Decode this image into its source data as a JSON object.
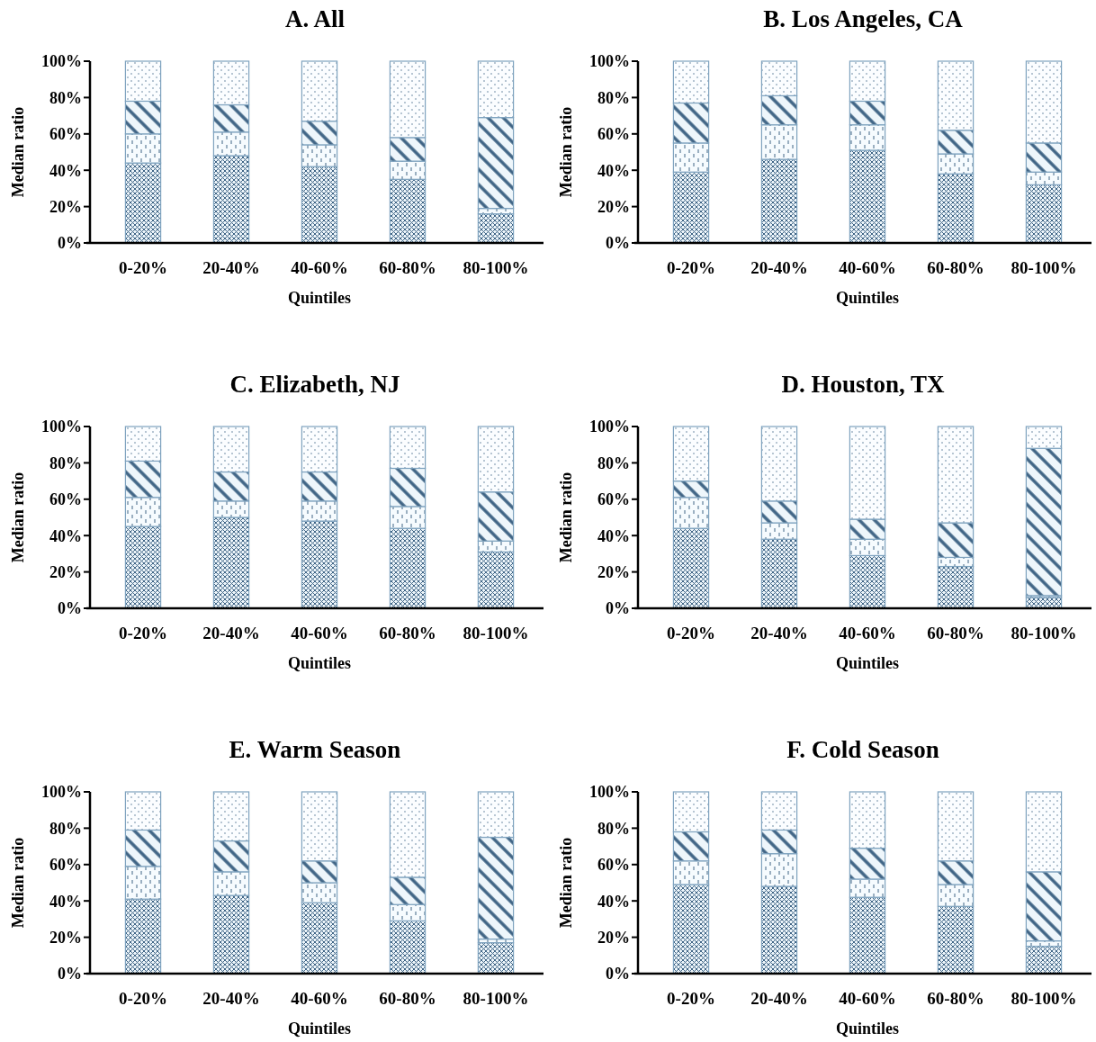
{
  "chart_data": [
    {
      "type": "bar",
      "stacked": true,
      "title": "A. All",
      "xlabel": "Quintiles",
      "ylabel": "Median ratio",
      "categories": [
        "0-20%",
        "20-40%",
        "40-60%",
        "60-80%",
        "80-100%"
      ],
      "ylim": [
        0,
        100
      ],
      "yticks": [
        {
          "value": 0,
          "label": "0%"
        },
        {
          "value": 20,
          "label": "20%"
        },
        {
          "value": 40,
          "label": "40%"
        },
        {
          "value": 60,
          "label": "60%"
        },
        {
          "value": 80,
          "label": "80%"
        },
        {
          "value": 100,
          "label": "100%"
        }
      ],
      "series": [
        {
          "color": "#7fa3bf",
          "values": [
            44,
            48,
            42,
            35,
            16
          ]
        },
        {
          "color": "#7fa3bf",
          "values": [
            16,
            13,
            12,
            10,
            3
          ]
        },
        {
          "color": "#7fa3bf",
          "values": [
            18,
            15,
            13,
            13,
            50
          ]
        },
        {
          "color": "#7fa3bf",
          "values": [
            22,
            24,
            33,
            42,
            31
          ]
        }
      ]
    },
    {
      "type": "bar",
      "stacked": true,
      "title": "B. Los Angeles, CA",
      "xlabel": "Quintiles",
      "ylabel": "Median ratio",
      "categories": [
        "0-20%",
        "20-40%",
        "40-60%",
        "60-80%",
        "80-100%"
      ],
      "ylim": [
        0,
        100
      ],
      "yticks": [
        {
          "value": 0,
          "label": "0%"
        },
        {
          "value": 20,
          "label": "20%"
        },
        {
          "value": 40,
          "label": "40%"
        },
        {
          "value": 60,
          "label": "60%"
        },
        {
          "value": 80,
          "label": "80%"
        },
        {
          "value": 100,
          "label": "100%"
        }
      ],
      "series": [
        {
          "color": "#7fa3bf",
          "values": [
            39,
            46,
            51,
            38,
            32
          ]
        },
        {
          "color": "#7fa3bf",
          "values": [
            16,
            19,
            14,
            11,
            7
          ]
        },
        {
          "color": "#7fa3bf",
          "values": [
            22,
            16,
            13,
            13,
            16
          ]
        },
        {
          "color": "#7fa3bf",
          "values": [
            23,
            19,
            22,
            38,
            45
          ]
        }
      ]
    },
    {
      "type": "bar",
      "stacked": true,
      "title": "C. Elizabeth, NJ",
      "xlabel": "Quintiles",
      "ylabel": "Median ratio",
      "categories": [
        "0-20%",
        "20-40%",
        "40-60%",
        "60-80%",
        "80-100%"
      ],
      "ylim": [
        0,
        100
      ],
      "yticks": [
        {
          "value": 0,
          "label": "0%"
        },
        {
          "value": 20,
          "label": "20%"
        },
        {
          "value": 40,
          "label": "40%"
        },
        {
          "value": 60,
          "label": "60%"
        },
        {
          "value": 80,
          "label": "80%"
        },
        {
          "value": 100,
          "label": "100%"
        }
      ],
      "series": [
        {
          "color": "#7fa3bf",
          "values": [
            45,
            50,
            48,
            44,
            31
          ]
        },
        {
          "color": "#7fa3bf",
          "values": [
            16,
            9,
            11,
            12,
            6
          ]
        },
        {
          "color": "#7fa3bf",
          "values": [
            20,
            16,
            16,
            21,
            27
          ]
        },
        {
          "color": "#7fa3bf",
          "values": [
            19,
            25,
            25,
            23,
            36
          ]
        }
      ]
    },
    {
      "type": "bar",
      "stacked": true,
      "title": "D. Houston, TX",
      "xlabel": "Quintiles",
      "ylabel": "Median ratio",
      "categories": [
        "0-20%",
        "20-40%",
        "40-60%",
        "60-80%",
        "80-100%"
      ],
      "ylim": [
        0,
        100
      ],
      "yticks": [
        {
          "value": 0,
          "label": "0%"
        },
        {
          "value": 20,
          "label": "20%"
        },
        {
          "value": 40,
          "label": "40%"
        },
        {
          "value": 60,
          "label": "60%"
        },
        {
          "value": 80,
          "label": "80%"
        },
        {
          "value": 100,
          "label": "100%"
        }
      ],
      "series": [
        {
          "color": "#7fa3bf",
          "values": [
            44,
            38,
            29,
            23,
            6
          ]
        },
        {
          "color": "#7fa3bf",
          "values": [
            17,
            9,
            9,
            5,
            1
          ]
        },
        {
          "color": "#7fa3bf",
          "values": [
            9,
            12,
            11,
            19,
            81
          ]
        },
        {
          "color": "#7fa3bf",
          "values": [
            30,
            41,
            51,
            53,
            12
          ]
        }
      ]
    },
    {
      "type": "bar",
      "stacked": true,
      "title": "E. Warm Season",
      "xlabel": "Quintiles",
      "ylabel": "Median ratio",
      "categories": [
        "0-20%",
        "20-40%",
        "40-60%",
        "60-80%",
        "80-100%"
      ],
      "ylim": [
        0,
        100
      ],
      "yticks": [
        {
          "value": 0,
          "label": "0%"
        },
        {
          "value": 20,
          "label": "20%"
        },
        {
          "value": 40,
          "label": "40%"
        },
        {
          "value": 60,
          "label": "60%"
        },
        {
          "value": 80,
          "label": "80%"
        },
        {
          "value": 100,
          "label": "100%"
        }
      ],
      "series": [
        {
          "color": "#7fa3bf",
          "values": [
            41,
            43,
            39,
            29,
            17
          ]
        },
        {
          "color": "#7fa3bf",
          "values": [
            18,
            13,
            11,
            9,
            2
          ]
        },
        {
          "color": "#7fa3bf",
          "values": [
            20,
            17,
            12,
            15,
            56
          ]
        },
        {
          "color": "#7fa3bf",
          "values": [
            21,
            27,
            38,
            47,
            25
          ]
        }
      ]
    },
    {
      "type": "bar",
      "stacked": true,
      "title": "F. Cold Season",
      "xlabel": "Quintiles",
      "ylabel": "Median ratio",
      "categories": [
        "0-20%",
        "20-40%",
        "40-60%",
        "60-80%",
        "80-100%"
      ],
      "ylim": [
        0,
        100
      ],
      "yticks": [
        {
          "value": 0,
          "label": "0%"
        },
        {
          "value": 20,
          "label": "20%"
        },
        {
          "value": 40,
          "label": "40%"
        },
        {
          "value": 60,
          "label": "60%"
        },
        {
          "value": 80,
          "label": "80%"
        },
        {
          "value": 100,
          "label": "100%"
        }
      ],
      "series": [
        {
          "color": "#7fa3bf",
          "values": [
            49,
            48,
            42,
            37,
            15
          ]
        },
        {
          "color": "#7fa3bf",
          "values": [
            13,
            18,
            10,
            12,
            3
          ]
        },
        {
          "color": "#7fa3bf",
          "values": [
            16,
            13,
            17,
            13,
            38
          ]
        },
        {
          "color": "#7fa3bf",
          "values": [
            22,
            21,
            31,
            38,
            44
          ]
        }
      ]
    }
  ]
}
